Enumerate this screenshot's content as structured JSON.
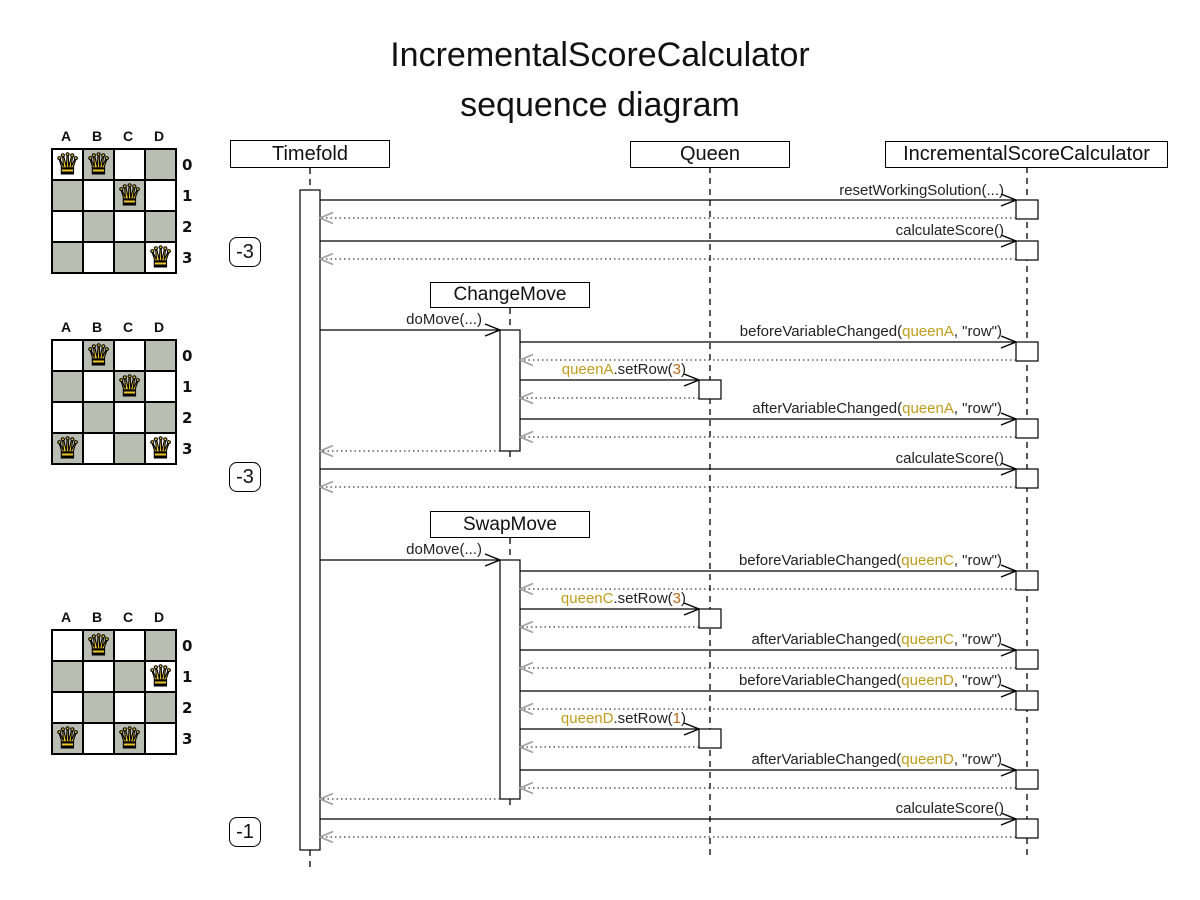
{
  "title": {
    "line1": "IncrementalScoreCalculator",
    "line2": "sequence diagram"
  },
  "participants": {
    "timefold": "Timefold",
    "queen": "Queen",
    "calculator": "IncrementalScoreCalculator"
  },
  "moves": {
    "change": "ChangeMove",
    "swap": "SwapMove"
  },
  "scores": [
    "-3",
    "-3",
    "-1"
  ],
  "messages": {
    "reset": {
      "text": "resetWorkingSolution(...)"
    },
    "calculate": {
      "text": "calculateScore()"
    },
    "doMove": {
      "text": "doMove(...)"
    },
    "beforeA": {
      "prefix": "beforeVariableChanged(",
      "arg": "queenA",
      "suffix": ", \"row\")"
    },
    "setRowA": {
      "arg": "queenA",
      "method": ".setRow(",
      "num": "3",
      "close": ")"
    },
    "afterA": {
      "prefix": "afterVariableChanged(",
      "arg": "queenA",
      "suffix": ", \"row\")"
    },
    "beforeC": {
      "prefix": "beforeVariableChanged(",
      "arg": "queenC",
      "suffix": ", \"row\")"
    },
    "setRowC": {
      "arg": "queenC",
      "method": ".setRow(",
      "num": "3",
      "close": ")"
    },
    "afterC": {
      "prefix": "afterVariableChanged(",
      "arg": "queenC",
      "suffix": ", \"row\")"
    },
    "beforeD": {
      "prefix": "beforeVariableChanged(",
      "arg": "queenD",
      "suffix": ", \"row\")"
    },
    "setRowD": {
      "arg": "queenD",
      "method": ".setRow(",
      "num": "1",
      "close": ")"
    },
    "afterD": {
      "prefix": "afterVariableChanged(",
      "arg": "queenD",
      "suffix": ", \"row\")"
    }
  },
  "boards": [
    {
      "columns": [
        "A",
        "B",
        "C",
        "D"
      ],
      "rows": [
        "0",
        "1",
        "2",
        "3"
      ],
      "queens": [
        {
          "col": "A",
          "row": 0
        },
        {
          "col": "B",
          "row": 0
        },
        {
          "col": "C",
          "row": 1
        },
        {
          "col": "D",
          "row": 3
        }
      ],
      "score": "-3"
    },
    {
      "columns": [
        "A",
        "B",
        "C",
        "D"
      ],
      "rows": [
        "0",
        "1",
        "2",
        "3"
      ],
      "queens": [
        {
          "col": "B",
          "row": 0
        },
        {
          "col": "C",
          "row": 1
        },
        {
          "col": "A",
          "row": 3
        },
        {
          "col": "D",
          "row": 3
        }
      ],
      "score": "-3"
    },
    {
      "columns": [
        "A",
        "B",
        "C",
        "D"
      ],
      "rows": [
        "0",
        "1",
        "2",
        "3"
      ],
      "queens": [
        {
          "col": "B",
          "row": 0
        },
        {
          "col": "D",
          "row": 1
        },
        {
          "col": "A",
          "row": 3
        },
        {
          "col": "C",
          "row": 3
        }
      ],
      "score": "-1"
    }
  ],
  "icons": {
    "queen_glyph": "♛"
  },
  "colors": {
    "queen_arg": "#c09c1c",
    "number_arg": "#b96a1a",
    "board_dark_cell": "#b9bdb2",
    "queen_fill": "#f0c929",
    "move_arrow": "#dd9f44",
    "move_arrow_edge": "#8a5a16",
    "return_arrowhead": "#a0a0a0"
  }
}
